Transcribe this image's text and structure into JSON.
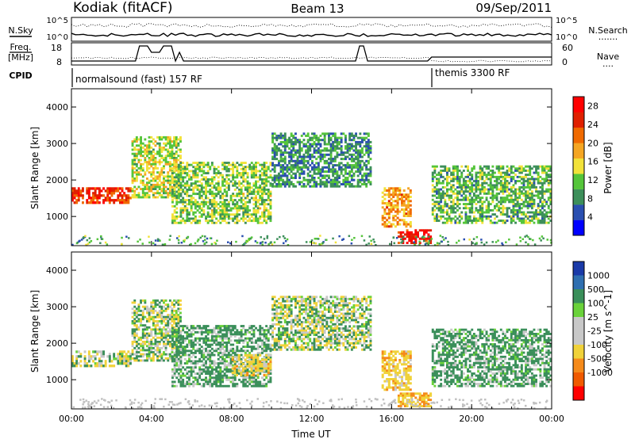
{
  "header": {
    "station": "Kodiak (fitACF)",
    "beam": "Beam 13",
    "date": "09/Sep/2011"
  },
  "noise_panel": {
    "left_label": "N.Sky",
    "right_label": "N.Search",
    "right_legend_line": ".......",
    "y_top_tick": "10^5",
    "y_bottom_tick": "10^0"
  },
  "freq_panel": {
    "left_label_1": "Freq.",
    "left_label_2": "[MHz]",
    "left_ticks": [
      "18",
      "8"
    ],
    "right_label": "Nave",
    "right_legend_line": "....",
    "right_ticks": [
      "60",
      "0"
    ]
  },
  "cpid_panel": {
    "label": "CPID",
    "segments": [
      {
        "text": "normalsound (fast) 157 RF",
        "start_hour": 0
      },
      {
        "text": "themis 3300 RF",
        "start_hour": 18
      }
    ]
  },
  "colors": {
    "power_scale": [
      "#0000ff",
      "#2a4fb0",
      "#3d8f5a",
      "#55c53a",
      "#f2e23a",
      "#f5a623",
      "#f06a00",
      "#e02000",
      "#ff0000"
    ],
    "velocity_scale": [
      "#1a3aa8",
      "#2f6fb0",
      "#3a8f5a",
      "#6ad23a",
      "#c8c8c8",
      "#c8c8c8",
      "#f0d23a",
      "#f58a1a",
      "#f05a00",
      "#ff0000"
    ],
    "ground_scatter": "#c0c0c0"
  },
  "chart_data": [
    {
      "type": "heatmap",
      "title": "Power",
      "xlabel": "Time UT",
      "ylabel": "Slant Range [km]",
      "xlim_hours": [
        0,
        24
      ],
      "ylim": [
        200,
        4500
      ],
      "x_ticks": [
        "00:00",
        "04:00",
        "08:00",
        "12:00",
        "16:00",
        "20:00",
        "00:00"
      ],
      "y_ticks": [
        "1000",
        "2000",
        "3000",
        "4000"
      ],
      "colorbar": {
        "label": "Power [dB]",
        "ticks": [
          "4",
          "8",
          "12",
          "16",
          "20",
          "24",
          "28"
        ],
        "range": [
          0,
          30
        ]
      },
      "regions": [
        {
          "t0": 0.0,
          "t1": 3.0,
          "r0": 1350,
          "r1": 1800,
          "value": 26
        },
        {
          "t0": 3.0,
          "t1": 5.5,
          "r0": 1500,
          "r1": 3200,
          "value": 14
        },
        {
          "t0": 5.0,
          "t1": 10.0,
          "r0": 800,
          "r1": 2500,
          "value": 12
        },
        {
          "t0": 10.0,
          "t1": 15.0,
          "r0": 1800,
          "r1": 3300,
          "value": 8
        },
        {
          "t0": 15.5,
          "t1": 17.0,
          "r0": 700,
          "r1": 1800,
          "value": 20
        },
        {
          "t0": 16.3,
          "t1": 18.0,
          "r0": 250,
          "r1": 650,
          "value": 28
        },
        {
          "t0": 18.0,
          "t1": 24.0,
          "r0": 800,
          "r1": 2400,
          "value": 10
        }
      ]
    },
    {
      "type": "heatmap",
      "title": "Velocity",
      "xlabel": "Time UT",
      "ylabel": "Slant Range [km]",
      "xlim_hours": [
        0,
        24
      ],
      "ylim": [
        200,
        4500
      ],
      "x_ticks": [
        "00:00",
        "04:00",
        "08:00",
        "12:00",
        "16:00",
        "20:00",
        "00:00"
      ],
      "y_ticks": [
        "1000",
        "2000",
        "3000",
        "4000"
      ],
      "colorbar": {
        "label": "Velocity [m s^-1]",
        "ticks": [
          "1000",
          "500",
          "100",
          "25",
          "-25",
          "-100",
          "-500",
          "-1000"
        ]
      },
      "regions": [
        {
          "t0": 0.0,
          "t1": 3.0,
          "r0": 1350,
          "r1": 1800,
          "value": 0
        },
        {
          "t0": 3.0,
          "t1": 5.5,
          "r0": 1500,
          "r1": 3200,
          "value": 0
        },
        {
          "t0": 5.0,
          "t1": 10.0,
          "r0": 800,
          "r1": 2500,
          "value": 200
        },
        {
          "t0": 8.0,
          "t1": 10.0,
          "r0": 1100,
          "r1": 1700,
          "value": -300
        },
        {
          "t0": 10.0,
          "t1": 15.0,
          "r0": 1800,
          "r1": 3300,
          "value": 0
        },
        {
          "t0": 15.5,
          "t1": 17.0,
          "r0": 700,
          "r1": 1800,
          "value": -300
        },
        {
          "t0": 16.3,
          "t1": 18.0,
          "r0": 250,
          "r1": 650,
          "value": -400
        },
        {
          "t0": 18.0,
          "t1": 24.0,
          "r0": 800,
          "r1": 2400,
          "value": 200
        }
      ]
    }
  ]
}
